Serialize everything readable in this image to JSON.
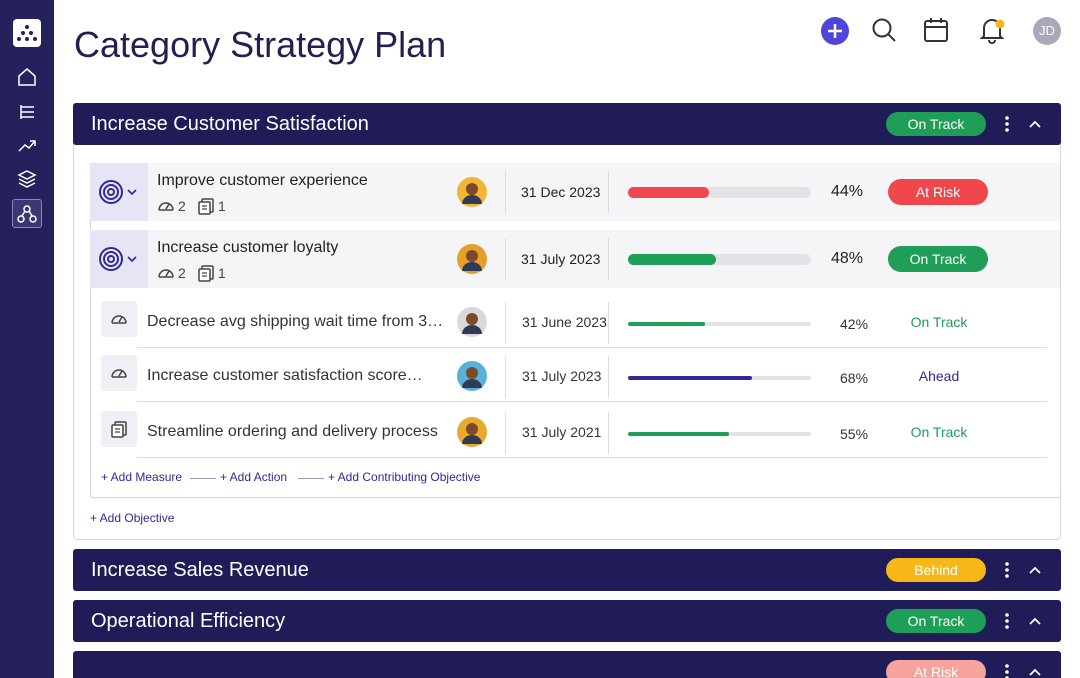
{
  "header": {
    "title": "Category Strategy Plan",
    "avatar": "JD"
  },
  "sections": [
    {
      "title": "Increase Customer Satisfaction",
      "status": "On Track",
      "status_color": "#1e9e57",
      "objectives": [
        {
          "name": "Improve customer experience",
          "measures": 2,
          "actions": 1,
          "due": "31 Dec 2023",
          "progress": {
            "value": 44,
            "label": "44%"
          },
          "bar_color": "#f0474c",
          "status": "At Risk",
          "status_color": "#f0474c"
        },
        {
          "name": "Increase customer loyalty",
          "measures": 2,
          "actions": 1,
          "due": "31 July 2023",
          "progress": {
            "value": 48,
            "label": "48%"
          },
          "bar_color": "#1e9e57",
          "status": "On Track",
          "status_color": "#1e9e57"
        }
      ],
      "items": [
        {
          "name": "Decrease avg shipping wait time from 3…",
          "due": "31 June 2023",
          "progress": {
            "value": 42,
            "label": "42%"
          },
          "bar_color": "#1e9e57",
          "status": "On Track",
          "status_color": "#1e9e57"
        },
        {
          "name": "Increase customer satisfaction score…",
          "due": "31 July 2023",
          "progress": {
            "value": 68,
            "label": "68%"
          },
          "bar_color": "#2f2a96",
          "status": "Ahead",
          "status_color": "#2f2a96"
        },
        {
          "name": "Streamline ordering and delivery process",
          "due": "31 July 2021",
          "progress": {
            "value": 55,
            "label": "55%"
          },
          "bar_color": "#1e9e57",
          "status": "On Track",
          "status_color": "#1e9e57"
        }
      ],
      "links": [
        "+ Add Measure",
        "+ Add Action",
        "+ Add Contributing Objective"
      ],
      "add_objective": "+ Add Objective"
    },
    {
      "title": "Increase Sales Revenue",
      "status": "Behind",
      "status_color": "#f7b718"
    },
    {
      "title": "Operational Efficiency",
      "status": "On Track",
      "status_color": "#1e9e57"
    },
    {
      "status": "At Risk",
      "status_color": "#f5a39c"
    }
  ]
}
